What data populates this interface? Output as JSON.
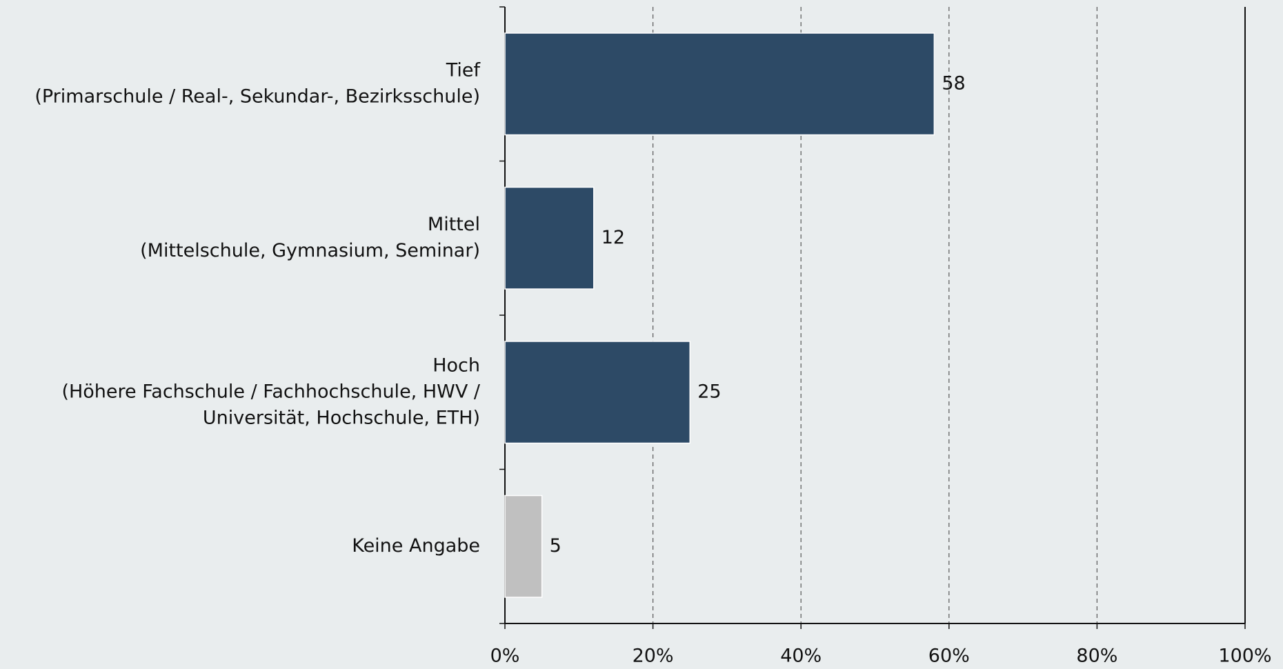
{
  "chart_data": {
    "type": "barh",
    "categories": [
      [
        "Tief",
        "(Primarschule / Real-, Sekundar-, Bezirksschule)"
      ],
      [
        "Mittel",
        "(Mittelschule, Gymnasium, Seminar)"
      ],
      [
        "Hoch",
        "(Höhere Fachschule / Fachhochschule, HWV /",
        "Universität, Hochschule, ETH)"
      ],
      [
        "Keine Angabe"
      ]
    ],
    "values": [
      58,
      12,
      25,
      5
    ],
    "colors": [
      "#2d4a66",
      "#2d4a66",
      "#2d4a66",
      "#c0c0c0"
    ],
    "xlim": [
      0,
      100
    ],
    "xticks": [
      {
        "value": 0,
        "label": "0%"
      },
      {
        "value": 20,
        "label": "20%"
      },
      {
        "value": 40,
        "label": "40%"
      },
      {
        "value": 60,
        "label": "60%"
      },
      {
        "value": 80,
        "label": "80%"
      },
      {
        "value": 100,
        "label": "100%"
      }
    ],
    "grid": true
  }
}
